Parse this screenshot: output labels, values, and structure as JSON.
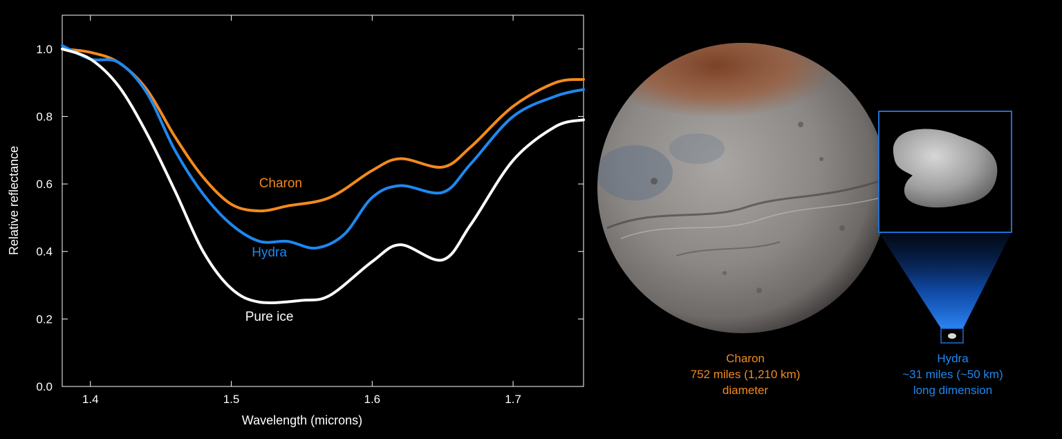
{
  "chart_data": {
    "type": "line",
    "title": "",
    "xlabel": "Wavelength (microns)",
    "ylabel": "Relative reflectance",
    "xlim": [
      1.38,
      1.75
    ],
    "ylim": [
      0.0,
      1.1
    ],
    "xticks": [
      "1.4",
      "1.5",
      "1.6",
      "1.7"
    ],
    "xtick_values": [
      1.4,
      1.5,
      1.6,
      1.7
    ],
    "yticks": [
      "0.0",
      "0.2",
      "0.4",
      "0.6",
      "0.8",
      "1.0"
    ],
    "ytick_values": [
      0.0,
      0.2,
      0.4,
      0.6,
      0.8,
      1.0
    ],
    "grid": false,
    "legend": "inline labels",
    "series": [
      {
        "name": "Charon",
        "color": "#F28A1E",
        "x": [
          1.38,
          1.4,
          1.42,
          1.44,
          1.46,
          1.48,
          1.5,
          1.52,
          1.54,
          1.57,
          1.6,
          1.62,
          1.65,
          1.67,
          1.7,
          1.73,
          1.75
        ],
        "y": [
          1.0,
          0.99,
          0.96,
          0.88,
          0.74,
          0.62,
          0.54,
          0.52,
          0.535,
          0.56,
          0.64,
          0.675,
          0.65,
          0.71,
          0.83,
          0.9,
          0.91
        ]
      },
      {
        "name": "Hydra",
        "color": "#1E88F0",
        "x": [
          1.38,
          1.4,
          1.42,
          1.44,
          1.46,
          1.48,
          1.5,
          1.52,
          1.54,
          1.56,
          1.58,
          1.6,
          1.62,
          1.65,
          1.67,
          1.7,
          1.73,
          1.75
        ],
        "y": [
          1.01,
          0.97,
          0.96,
          0.87,
          0.7,
          0.57,
          0.48,
          0.43,
          0.43,
          0.41,
          0.45,
          0.56,
          0.595,
          0.575,
          0.66,
          0.8,
          0.86,
          0.88
        ]
      },
      {
        "name": "Pure ice",
        "color": "#FFFFFF",
        "x": [
          1.38,
          1.4,
          1.42,
          1.44,
          1.46,
          1.48,
          1.5,
          1.52,
          1.55,
          1.57,
          1.6,
          1.62,
          1.65,
          1.67,
          1.7,
          1.73,
          1.75
        ],
        "y": [
          1.0,
          0.97,
          0.89,
          0.75,
          0.58,
          0.4,
          0.29,
          0.25,
          0.255,
          0.27,
          0.37,
          0.42,
          0.375,
          0.48,
          0.67,
          0.77,
          0.79
        ]
      }
    ],
    "annotations": [
      {
        "text": "Charon",
        "x": 1.535,
        "y": 0.59,
        "color": "#F28A1E"
      },
      {
        "text": "Hydra",
        "x": 1.527,
        "y": 0.385,
        "color": "#1E88F0"
      },
      {
        "text": "Pure ice",
        "x": 1.527,
        "y": 0.195,
        "color": "#FFFFFF"
      }
    ]
  },
  "captions": {
    "charon": {
      "name": "Charon",
      "size": "752 miles (1,210 km)",
      "note": "diameter",
      "color": "#F28A1E"
    },
    "hydra": {
      "name": "Hydra",
      "size": "~31 miles (~50 km)",
      "note": "long dimension",
      "color": "#1E88F0"
    }
  },
  "colors": {
    "inset_frame": "#1E6FD9",
    "charon_surface": "#8E8A88",
    "charon_cap": "#8A4E2E"
  }
}
